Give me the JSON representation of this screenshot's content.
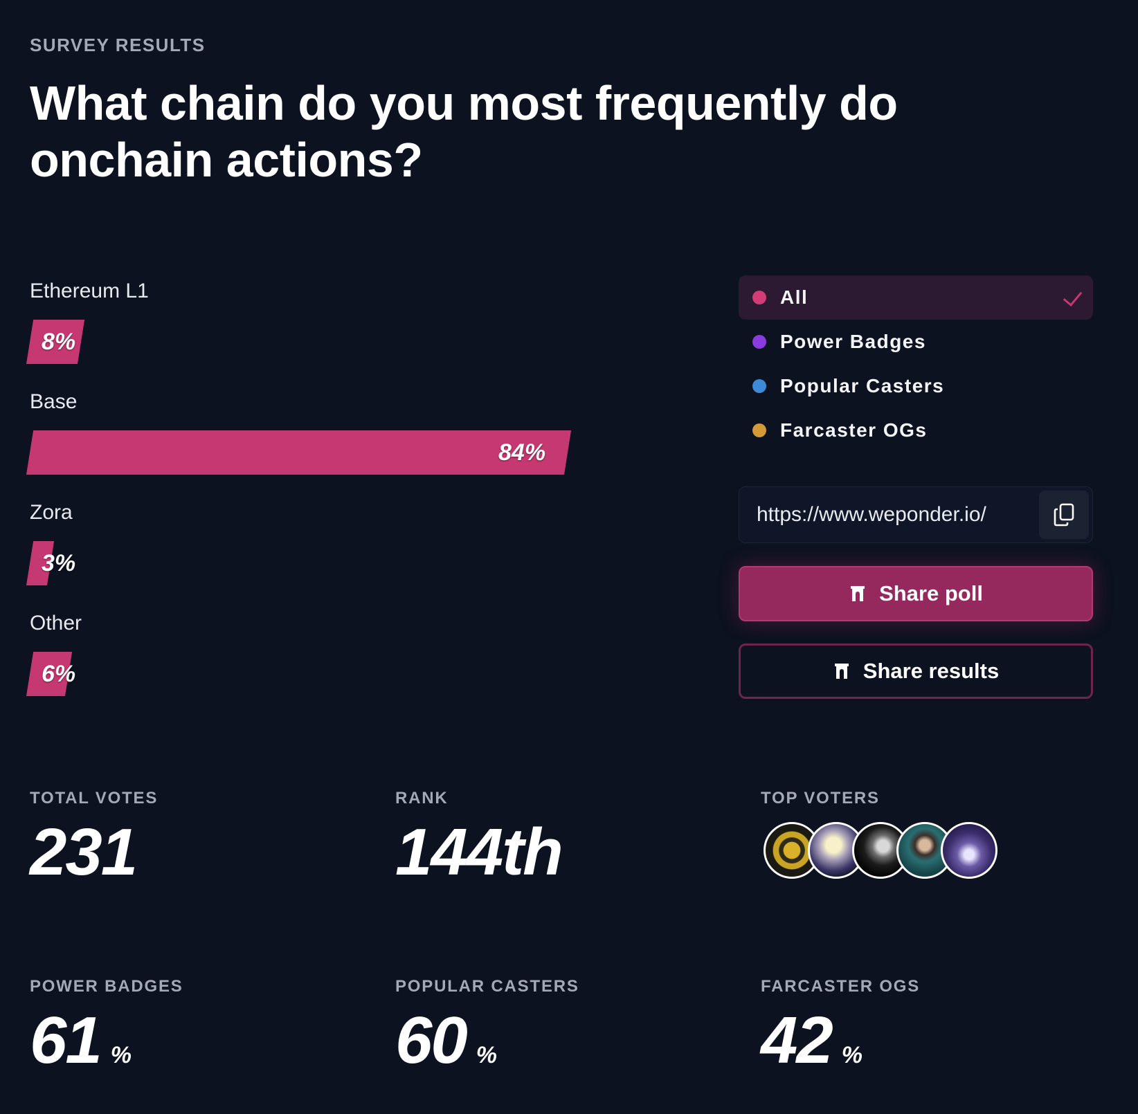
{
  "header": {
    "eyebrow": "SURVEY RESULTS",
    "question": "What chain do you most frequently do onchain actions?"
  },
  "results": [
    {
      "label": "Ethereum L1",
      "percent": 8,
      "percent_text": "8%"
    },
    {
      "label": "Base",
      "percent": 84,
      "percent_text": "84%"
    },
    {
      "label": "Zora",
      "percent": 3,
      "percent_text": "3%"
    },
    {
      "label": "Other",
      "percent": 6,
      "percent_text": "6%"
    }
  ],
  "filters": [
    {
      "label": "All",
      "color": "#d43c78",
      "selected": true
    },
    {
      "label": "Power Badges",
      "color": "#8a3be0",
      "selected": false
    },
    {
      "label": "Popular Casters",
      "color": "#3d8bd6",
      "selected": false
    },
    {
      "label": "Farcaster OGs",
      "color": "#d39a36",
      "selected": false
    }
  ],
  "share": {
    "url": "https://www.weponder.io/",
    "share_poll_label": "Share poll",
    "share_results_label": "Share results"
  },
  "stats": {
    "total_votes_label": "TOTAL VOTES",
    "total_votes": "231",
    "rank_label": "RANK",
    "rank": "144th",
    "top_voters_label": "TOP VOTERS",
    "power_badges_label": "POWER BADGES",
    "power_badges": "61",
    "popular_casters_label": "POPULAR CASTERS",
    "popular_casters": "60",
    "farcaster_ogs_label": "FARCASTER OGS",
    "farcaster_ogs": "42",
    "percent_unit": "%"
  },
  "colors": {
    "background": "#0d1220",
    "accent": "#c63872",
    "button_primary": "#95285d"
  }
}
